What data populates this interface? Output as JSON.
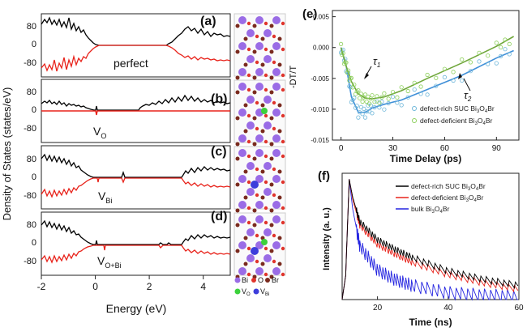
{
  "figure": {
    "dos_ylabel": "Density of  States (states/eV)",
    "dos_xlabel": "Energy (eV)",
    "dos_xticks": [
      "-2",
      "0",
      "2",
      "4"
    ],
    "dos_yticks": [
      "80",
      "0",
      "-80"
    ],
    "panels": [
      {
        "letter": "(a)",
        "label": "perfect",
        "sub": ""
      },
      {
        "letter": "(b)",
        "label": "V",
        "sub": "O"
      },
      {
        "letter": "(c)",
        "label": "V",
        "sub": "Bi"
      },
      {
        "letter": "(d)",
        "label": "V",
        "sub": "O+Bi"
      }
    ],
    "crystal_legend": [
      {
        "label": "Bi",
        "sub": "",
        "color": "#9a6ce6"
      },
      {
        "label": "O",
        "sub": "",
        "color": "#e0342c"
      },
      {
        "label": "Br",
        "sub": "",
        "color": "#7a2a1e"
      },
      {
        "label": "V",
        "sub": "O",
        "color": "#3bd13b"
      },
      {
        "label": "V",
        "sub": "Bi",
        "color": "#3d3ddb"
      }
    ],
    "colors": {
      "up": "#000000",
      "down": "#e8221a",
      "fit_green": "#6fa63a",
      "fit_blue": "#3f8fd8",
      "bulk": "#2424e0",
      "bi": "#9a6ce6",
      "o": "#e0342c",
      "br": "#7a2a1e"
    }
  },
  "chart_data": [
    {
      "type": "line",
      "panel": "a-d",
      "title": "",
      "xlabel": "Energy (eV)",
      "ylabel": "Density of  States (states/eV)",
      "xlim": [
        -2,
        5
      ],
      "ylim": [
        -120,
        120
      ],
      "series": [
        {
          "name": "",
          "x": [
            -2,
            -1.5,
            -1,
            -0.5,
            -0.2,
            0,
            0.5,
            1,
            2,
            2.8,
            3,
            3.5,
            4,
            4.5,
            5
          ],
          "values": [
            100,
            95,
            90,
            60,
            30,
            0,
            0,
            0,
            0,
            5,
            40,
            50,
            45,
            40,
            35
          ]
        }
      ]
    },
    {
      "type": "scatter",
      "panel": "e",
      "title": "",
      "xlabel": "Time Delay (ps)",
      "ylabel": "-DT/T",
      "xlim": [
        -5,
        103
      ],
      "ylim": [
        -0.015,
        0.006
      ],
      "xticks": [
        "0",
        "30",
        "60",
        "90"
      ],
      "yticks": [
        "0.005",
        "0.000",
        "-0.005",
        "-0.010",
        "-0.015"
      ],
      "annotations": [
        {
          "text": "τ",
          "sub": "1"
        },
        {
          "text": "τ",
          "sub": "2"
        }
      ],
      "series": [
        {
          "name": "defect-rich SUC Bi3O4Br",
          "label": "defect-rich SUC Bi",
          "parts": [
            "3",
            "O",
            "4",
            "Br"
          ],
          "x": [
            0,
            3,
            6,
            10,
            14,
            18,
            25,
            35,
            50,
            70,
            90,
            100
          ],
          "values": [
            0,
            -0.003,
            -0.008,
            -0.0105,
            -0.0105,
            -0.0098,
            -0.0092,
            -0.0085,
            -0.0068,
            -0.0045,
            -0.0017,
            -0.0005
          ]
        },
        {
          "name": "defect-deficient Bi3O4Br",
          "label": "defect-deficient Bi",
          "parts": [
            "3",
            "O",
            "4",
            "Br"
          ],
          "x": [
            0,
            3,
            6,
            10,
            14,
            18,
            25,
            35,
            50,
            70,
            90,
            100
          ],
          "values": [
            0,
            -0.003,
            -0.0055,
            -0.0075,
            -0.0082,
            -0.0083,
            -0.008,
            -0.007,
            -0.005,
            -0.0025,
            0.0002,
            0.0018
          ]
        }
      ]
    },
    {
      "type": "line",
      "panel": "f",
      "title": "",
      "xlabel": "Time (ns)",
      "ylabel": "Intensity (a. u.)",
      "xlim": [
        10,
        60
      ],
      "ylim": [
        0,
        1.05
      ],
      "xticks": [
        "20",
        "40",
        "60"
      ],
      "series": [
        {
          "name": "defect-rich SUC Bi3O4Br",
          "label": "defect-rich SUC Bi",
          "parts": [
            "3",
            "O",
            "4",
            "Br"
          ],
          "x": [
            10,
            11,
            12,
            13,
            15,
            20,
            25,
            30,
            40,
            50,
            60
          ],
          "values": [
            0,
            0.2,
            1.0,
            0.85,
            0.65,
            0.5,
            0.42,
            0.35,
            0.24,
            0.17,
            0.12
          ]
        },
        {
          "name": "defect-deficient Bi3O4Br",
          "label": "defect-deficient Bi",
          "parts": [
            "3",
            "O",
            "4",
            "Br"
          ],
          "x": [
            10,
            11,
            12,
            13,
            15,
            20,
            25,
            30,
            40,
            50,
            60
          ],
          "values": [
            0,
            0.2,
            1.0,
            0.83,
            0.62,
            0.46,
            0.38,
            0.31,
            0.21,
            0.14,
            0.09
          ]
        },
        {
          "name": "bulk Bi3O4Br",
          "label": "bulk Bi",
          "parts": [
            "3",
            "O",
            "4",
            "Br"
          ],
          "x": [
            10,
            11,
            12,
            13,
            15,
            20,
            25,
            30,
            40,
            50,
            60
          ],
          "values": [
            0,
            0.2,
            1.0,
            0.75,
            0.45,
            0.25,
            0.17,
            0.12,
            0.06,
            0.04,
            0.03
          ]
        }
      ]
    }
  ]
}
